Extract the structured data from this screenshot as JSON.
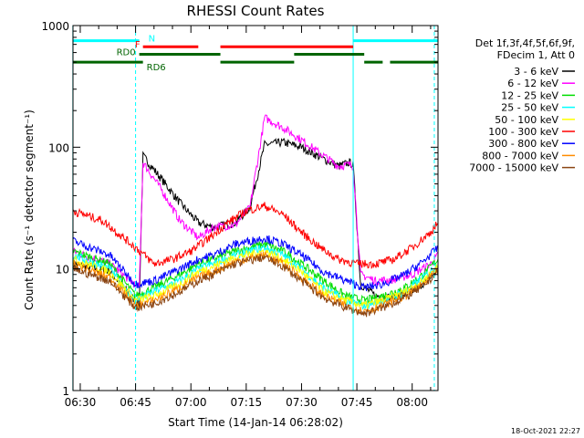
{
  "chart_data": {
    "type": "line",
    "title": "RHESSI Count Rates",
    "xlabel": "Start Time (14-Jan-14 06:28:02)",
    "ylabel": "Count Rate (s⁻¹ detector segment⁻¹)",
    "ylog": true,
    "ylim": [
      1,
      1000
    ],
    "xlim": [
      "06:28:02",
      "08:07:00"
    ],
    "x_ticks": [
      "06:30",
      "06:45",
      "07:00",
      "07:15",
      "07:30",
      "07:45",
      "08:00"
    ],
    "y_ticks": [
      "1",
      "10",
      "100",
      "1000"
    ],
    "legend": {
      "placement": "right",
      "header": [
        "Det 1f,3f,4f,5f,6f,9f,",
        "FDecim 1, Att 0"
      ]
    },
    "series": [
      {
        "name": "3 - 6 keV",
        "color": "#000000",
        "x": [
          "06:28",
          "06:38",
          "06:46",
          "06:47",
          "06:52",
          "06:57",
          "07:02",
          "07:06",
          "07:12",
          "07:16",
          "07:20",
          "07:25",
          "07:30",
          "07:36",
          "07:40",
          "07:43",
          "07:44",
          "07:46",
          "07:50",
          "07:55",
          "08:00",
          "08:05",
          "08:07"
        ],
        "y": [
          11,
          9.5,
          5,
          85,
          55,
          35,
          24,
          22,
          24,
          32,
          105,
          110,
          100,
          80,
          70,
          75,
          72,
          7.5,
          6,
          5.8,
          6.5,
          8.5,
          10
        ]
      },
      {
        "name": "6 - 12 keV",
        "color": "#ff00ff",
        "x": [
          "06:28",
          "06:38",
          "06:46",
          "06:47",
          "06:52",
          "06:57",
          "07:02",
          "07:06",
          "07:12",
          "07:16",
          "07:20",
          "07:25",
          "07:30",
          "07:36",
          "07:40",
          "07:43",
          "07:44",
          "07:46",
          "07:50",
          "07:55",
          "08:00",
          "08:05",
          "08:07"
        ],
        "y": [
          14,
          11,
          7,
          75,
          45,
          25,
          18,
          22,
          23,
          32,
          175,
          145,
          115,
          85,
          70,
          72,
          70,
          9,
          8,
          8.2,
          9,
          11,
          13
        ]
      },
      {
        "name": "12 - 25 keV",
        "color": "#00dd00",
        "x": [
          "06:28",
          "06:38",
          "06:45",
          "06:50",
          "06:57",
          "07:02",
          "07:06",
          "07:12",
          "07:20",
          "07:25",
          "07:30",
          "07:36",
          "07:42",
          "07:47",
          "07:52",
          "07:58",
          "08:03",
          "08:07"
        ],
        "y": [
          14,
          11,
          6,
          7,
          9,
          11,
          12,
          14,
          16,
          14,
          11,
          8,
          6,
          5.5,
          6,
          7,
          9,
          12
        ]
      },
      {
        "name": "25 - 50 keV",
        "color": "#00ffff",
        "x": [
          "06:28",
          "06:38",
          "06:45",
          "06:50",
          "06:57",
          "07:02",
          "07:06",
          "07:12",
          "07:20",
          "07:25",
          "07:30",
          "07:36",
          "07:42",
          "07:47",
          "07:52",
          "07:58",
          "08:03",
          "08:07"
        ],
        "y": [
          13,
          10,
          5.5,
          6.5,
          8,
          10,
          11,
          13,
          15,
          13,
          10,
          7,
          5.5,
          5,
          5.5,
          6.5,
          8.5,
          11
        ]
      },
      {
        "name": "50 - 100 keV",
        "color": "#ffff00",
        "x": [
          "06:28",
          "06:38",
          "06:45",
          "06:50",
          "06:57",
          "07:02",
          "07:06",
          "07:12",
          "07:20",
          "07:25",
          "07:30",
          "07:36",
          "07:42",
          "07:47",
          "07:52",
          "07:58",
          "08:03",
          "08:07"
        ],
        "y": [
          12,
          9.5,
          5.5,
          6,
          7.5,
          9.5,
          10.5,
          12.5,
          14,
          12,
          9.5,
          6.5,
          5.5,
          5,
          5.5,
          6.5,
          8,
          10.5
        ]
      },
      {
        "name": "100 - 300 keV",
        "color": "#ff0000",
        "x": [
          "06:28",
          "06:36",
          "06:45",
          "06:50",
          "06:55",
          "07:00",
          "07:05",
          "07:10",
          "07:15",
          "07:20",
          "07:25",
          "07:30",
          "07:35",
          "07:40",
          "07:45",
          "07:50",
          "07:55",
          "08:00",
          "08:05",
          "08:07"
        ],
        "y": [
          30,
          25,
          15,
          11,
          12,
          14,
          18,
          24,
          30,
          33,
          28,
          20,
          15,
          12,
          11,
          11,
          12,
          15,
          20,
          24
        ]
      },
      {
        "name": "300 - 800 keV",
        "color": "#0000ff",
        "x": [
          "06:28",
          "06:38",
          "06:45",
          "06:50",
          "06:57",
          "07:02",
          "07:06",
          "07:12",
          "07:20",
          "07:25",
          "07:30",
          "07:36",
          "07:42",
          "07:47",
          "07:52",
          "07:58",
          "08:03",
          "08:07"
        ],
        "y": [
          17,
          13,
          7.5,
          8,
          10,
          12,
          13,
          16,
          18,
          16,
          13,
          9.5,
          8,
          7,
          7.5,
          9,
          11.5,
          15
        ]
      },
      {
        "name": "800 - 7000 keV",
        "color": "#ff8c00",
        "x": [
          "06:28",
          "06:38",
          "06:45",
          "06:50",
          "06:57",
          "07:02",
          "07:06",
          "07:12",
          "07:20",
          "07:25",
          "07:30",
          "07:36",
          "07:42",
          "07:47",
          "07:52",
          "07:58",
          "08:03",
          "08:07"
        ],
        "y": [
          11,
          8.5,
          5,
          5.5,
          7,
          8.5,
          9.5,
          11.5,
          13,
          11,
          8.5,
          6,
          5,
          4.5,
          5,
          6,
          7.5,
          10
        ]
      },
      {
        "name": "7000 - 15000 keV",
        "color": "#8b4513",
        "x": [
          "06:28",
          "06:38",
          "06:45",
          "06:50",
          "06:57",
          "07:02",
          "07:06",
          "07:12",
          "07:20",
          "07:25",
          "07:30",
          "07:36",
          "07:42",
          "07:47",
          "07:52",
          "07:58",
          "08:03",
          "08:07"
        ],
        "y": [
          10,
          8,
          4.8,
          5.2,
          6.5,
          8,
          9,
          11,
          12.5,
          10.5,
          8,
          5.8,
          4.8,
          4.3,
          4.8,
          5.8,
          7.2,
          9.5
        ]
      }
    ],
    "flags": [
      {
        "label": "N",
        "label_color": "#00ffff",
        "color": "#00ffff",
        "level": 750,
        "segments": [
          [
            "06:28",
            "06:46"
          ],
          [
            "07:44",
            "08:07"
          ]
        ]
      },
      {
        "label": "F",
        "label_color": "#ff0000",
        "color": "#ff0000",
        "level": 670,
        "segments": [
          [
            "06:47",
            "07:02"
          ],
          [
            "07:08",
            "07:44"
          ]
        ]
      },
      {
        "label": "RD0",
        "label_color": "#006400",
        "color": "#006400",
        "level": 580,
        "segments": [
          [
            "06:46",
            "07:08"
          ],
          [
            "07:28",
            "07:47"
          ]
        ]
      },
      {
        "label": "RD6",
        "label_color": "#006400",
        "color": "#006400",
        "level": 500,
        "segments": [
          [
            "06:28",
            "06:47"
          ],
          [
            "07:08",
            "07:28"
          ],
          [
            "07:47",
            "07:52"
          ],
          [
            "07:54",
            "08:07"
          ]
        ]
      }
    ],
    "vertical_markers": [
      {
        "time": "06:28",
        "style": "solid",
        "color": "#00ffff"
      },
      {
        "time": "06:45",
        "style": "dashed",
        "color": "#00ffff"
      },
      {
        "time": "07:44",
        "style": "solid",
        "color": "#00ffff"
      },
      {
        "time": "08:06",
        "style": "dashed",
        "color": "#00ffff"
      }
    ]
  },
  "footer": {
    "timestamp": "18-Oct-2021 22:27"
  }
}
